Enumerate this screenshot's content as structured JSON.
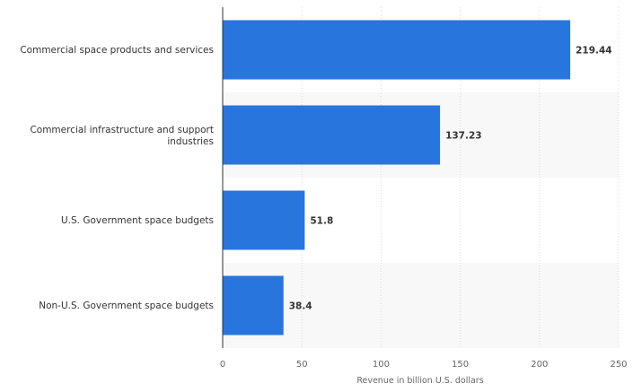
{
  "chart_data": {
    "type": "bar",
    "orientation": "horizontal",
    "categories": [
      "Commercial space products and services",
      "Commercial infrastructure and support industries",
      "U.S. Government space budgets",
      "Non-U.S. Government space budgets"
    ],
    "values": [
      219.44,
      137.23,
      51.8,
      38.4
    ],
    "value_labels": [
      "219.44",
      "137.23",
      "51.8",
      "38.4"
    ],
    "xlabel": "Revenue in billion U.S. dollars",
    "ylabel": "",
    "xlim": [
      0,
      250
    ],
    "xticks": [
      0,
      50,
      100,
      150,
      200,
      250
    ],
    "grid": true,
    "bar_color": "#2876dd",
    "band_color": "#f8f8f8"
  }
}
